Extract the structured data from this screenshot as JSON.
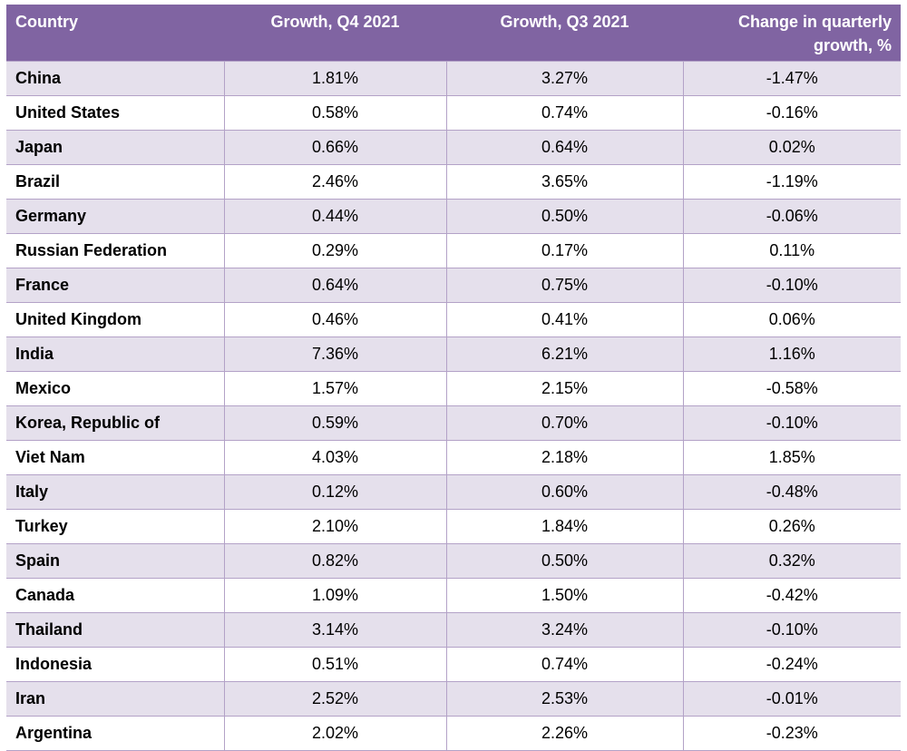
{
  "table": {
    "headers": [
      "Country",
      "Growth, Q4 2021",
      "Growth, Q3 2021",
      "Change in quarterly growth, %"
    ],
    "header_color": "#8064a2",
    "band_color": "#e5e0ec",
    "rows": [
      [
        "China",
        "1.81%",
        "3.27%",
        "-1.47%"
      ],
      [
        "United States",
        "0.58%",
        "0.74%",
        "-0.16%"
      ],
      [
        "Japan",
        "0.66%",
        "0.64%",
        "0.02%"
      ],
      [
        "Brazil",
        "2.46%",
        "3.65%",
        "-1.19%"
      ],
      [
        "Germany",
        "0.44%",
        "0.50%",
        "-0.06%"
      ],
      [
        "Russian Federation",
        "0.29%",
        "0.17%",
        "0.11%"
      ],
      [
        "France",
        "0.64%",
        "0.75%",
        "-0.10%"
      ],
      [
        "United Kingdom",
        "0.46%",
        "0.41%",
        "0.06%"
      ],
      [
        "India",
        "7.36%",
        "6.21%",
        "1.16%"
      ],
      [
        "Mexico",
        "1.57%",
        "2.15%",
        "-0.58%"
      ],
      [
        "Korea, Republic of",
        "0.59%",
        "0.70%",
        "-0.10%"
      ],
      [
        "Viet Nam",
        "4.03%",
        "2.18%",
        "1.85%"
      ],
      [
        "Italy",
        "0.12%",
        "0.60%",
        "-0.48%"
      ],
      [
        "Turkey",
        "2.10%",
        "1.84%",
        "0.26%"
      ],
      [
        "Spain",
        "0.82%",
        "0.50%",
        "0.32%"
      ],
      [
        "Canada",
        "1.09%",
        "1.50%",
        "-0.42%"
      ],
      [
        "Thailand",
        "3.14%",
        "3.24%",
        "-0.10%"
      ],
      [
        "Indonesia",
        "0.51%",
        "0.74%",
        "-0.24%"
      ],
      [
        "Iran",
        "2.52%",
        "2.53%",
        "-0.01%"
      ],
      [
        "Argentina",
        "2.02%",
        "2.26%",
        "-0.23%"
      ]
    ]
  }
}
